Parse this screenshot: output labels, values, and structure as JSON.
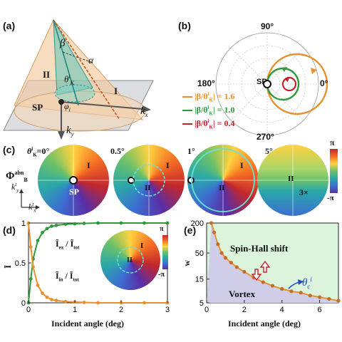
{
  "panels": {
    "a": {
      "label": "(a)",
      "symbols": {
        "beta": "β",
        "alpha": "α",
        "theta": "θ",
        "theta_sup": "i",
        "theta_sub": "K",
        "phi": "φ",
        "phi_sub": "i",
        "region_II": "II",
        "region_I": "I",
        "sp": "SP",
        "kx": "k",
        "kx_sub": "x",
        "ky": "k",
        "ky_sub": "y"
      }
    },
    "b": {
      "label": "(b)",
      "angles": [
        "90°",
        "180°",
        "0°",
        "270°"
      ],
      "sp": "SP",
      "legend": [
        {
          "text": "|β/θ",
          "sup": "i",
          "sub": "K",
          "tail": "| = 1.6",
          "color": "#e8902e"
        },
        {
          "text": "|β/θ",
          "sup": "i",
          "sub": "K",
          "tail": "| = 1.0",
          "color": "#2e9a3a"
        },
        {
          "text": "|β/θ",
          "sup": "i",
          "sub": "K",
          "tail": "| = 0.4",
          "color": "#c8202b"
        }
      ]
    },
    "c": {
      "label": "(c)",
      "theta_label": "θ",
      "theta_sup": "i",
      "theta_sub": "K",
      "angles": [
        "=0°",
        "0.5°",
        "1°",
        "5°"
      ],
      "phi_label": "Φ",
      "phi_sup": "abn",
      "phi_sub": "B",
      "ky": "k",
      "ky_sup": "t",
      "ky_sub": "y",
      "kx": "k",
      "kx_sup": "t",
      "kx_sub": "x",
      "sp": "SP",
      "region_I": "I",
      "region_II": "II",
      "scale_note": "3×",
      "colorbar": {
        "top": "π",
        "bottom": "-π"
      }
    },
    "d": {
      "label": "(d)",
      "ylabel": "Ī",
      "xlabel": "Incident angle (deg)",
      "legend_ex": "Ĩ",
      "legend_in": "Ĩ",
      "region_I": "I",
      "region_II": "II",
      "colorbar": {
        "top": "π",
        "bottom": "-π"
      }
    },
    "e": {
      "label": "(e)",
      "ylabel": "w",
      "xlabel": "Incident angle (deg)",
      "shift_label": "Spin-Hall shift",
      "vortex_label": "Vortex",
      "theta_c": "θ",
      "theta_c_sub": "c",
      "theta_c_sup": "i"
    }
  },
  "chart_data": [
    {
      "type": "line",
      "panel": "d",
      "x": [
        0,
        0.05,
        0.1,
        0.2,
        0.3,
        0.4,
        0.5,
        0.6,
        0.8,
        1.0,
        1.2,
        1.5,
        2.0,
        2.5,
        3.0
      ],
      "series": [
        {
          "name": "Ĩex / Ĩtot",
          "color": "#2e9a3a",
          "values": [
            0.0,
            0.3,
            0.55,
            0.78,
            0.88,
            0.93,
            0.96,
            0.97,
            0.985,
            0.99,
            0.995,
            1.0,
            1.0,
            1.0,
            1.0
          ]
        },
        {
          "name": "Ĩin / Ĩtot",
          "color": "#e8902e",
          "values": [
            1.0,
            0.7,
            0.45,
            0.22,
            0.12,
            0.07,
            0.04,
            0.03,
            0.015,
            0.01,
            0.005,
            0.0,
            0.0,
            0.0,
            0.0
          ]
        }
      ],
      "xlabel": "Incident angle (deg)",
      "xlim": [
        0,
        3
      ],
      "ylim": [
        0,
        1
      ],
      "xticks": [
        0,
        1,
        2,
        3
      ],
      "yticks": [
        0,
        0.5,
        1
      ]
    },
    {
      "type": "line",
      "panel": "e",
      "x": [
        0.25,
        0.4,
        0.6,
        0.8,
        1.0,
        1.3,
        1.6,
        2.0,
        2.5,
        3.0,
        3.5,
        4.0,
        4.5,
        5.0,
        5.5,
        6.0,
        6.5,
        7.0
      ],
      "series": [
        {
          "name": "θc",
          "color": "#e8902e",
          "values": [
            200,
            130,
            75,
            50,
            40,
            32,
            26,
            21,
            16,
            13,
            11,
            9.5,
            8.5,
            8,
            7,
            6.5,
            6,
            5.5
          ]
        }
      ],
      "xlabel": "Incident angle (deg)",
      "xlim": [
        0,
        7
      ],
      "ylim": [
        5,
        200
      ],
      "yscale": "log",
      "xticks": [
        0,
        2,
        4,
        6
      ],
      "yticks": [
        5,
        15,
        50,
        200
      ]
    }
  ]
}
